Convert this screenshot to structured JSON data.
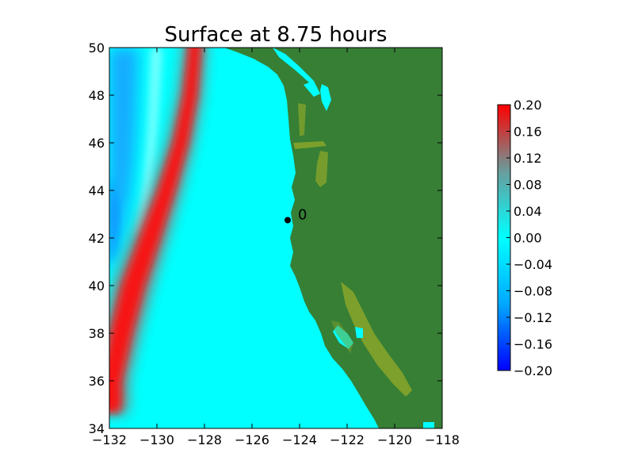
{
  "chart_data": {
    "type": "heatmap",
    "title": "Surface at 8.75 hours",
    "xlabel": "",
    "ylabel": "",
    "xlim": [
      -132,
      -118
    ],
    "ylim": [
      34,
      50
    ],
    "xticks": [
      -132,
      -130,
      -128,
      -126,
      -124,
      -122,
      -120,
      -118
    ],
    "xtick_labels": [
      "−132",
      "−130",
      "−128",
      "−126",
      "−124",
      "−122",
      "−120",
      "−118"
    ],
    "yticks": [
      34,
      36,
      38,
      40,
      42,
      44,
      46,
      48,
      50
    ],
    "ytick_labels": [
      "34",
      "36",
      "38",
      "40",
      "42",
      "44",
      "46",
      "48",
      "50"
    ],
    "colorbar": {
      "vmin": -0.2,
      "vmax": 0.2,
      "ticks": [
        0.2,
        0.16,
        0.12,
        0.08,
        0.04,
        0.0,
        -0.04,
        -0.08,
        -0.12,
        -0.16,
        -0.2
      ],
      "tick_labels": [
        "0.20",
        "0.16",
        "0.12",
        "0.08",
        "0.04",
        "0.00",
        "−0.04",
        "−0.08",
        "−0.12",
        "−0.16",
        "−0.20"
      ],
      "colors": [
        "#0000ff",
        "#00a8ff",
        "#00ffff",
        "#6a9c9c",
        "#ff0000"
      ]
    },
    "wave_front": {
      "description_points": [
        {
          "lon": -128.4,
          "lat": 50.0,
          "value": 0.11
        },
        {
          "lon": -128.6,
          "lat": 48.0,
          "value": 0.12
        },
        {
          "lon": -129.0,
          "lat": 46.0,
          "value": 0.13
        },
        {
          "lon": -129.6,
          "lat": 44.0,
          "value": 0.15
        },
        {
          "lon": -130.3,
          "lat": 42.0,
          "value": 0.18
        },
        {
          "lon": -131.0,
          "lat": 40.0,
          "value": 0.2
        },
        {
          "lon": -131.5,
          "lat": 38.0,
          "value": 0.19
        },
        {
          "lon": -131.9,
          "lat": 36.0,
          "value": 0.17
        }
      ]
    },
    "gauge": {
      "lon": -124.5,
      "lat": 42.75,
      "label": "0"
    },
    "colors": {
      "land": "#367f35",
      "shallow_land": "#7ca02b",
      "ocean": "#00ffff"
    }
  }
}
